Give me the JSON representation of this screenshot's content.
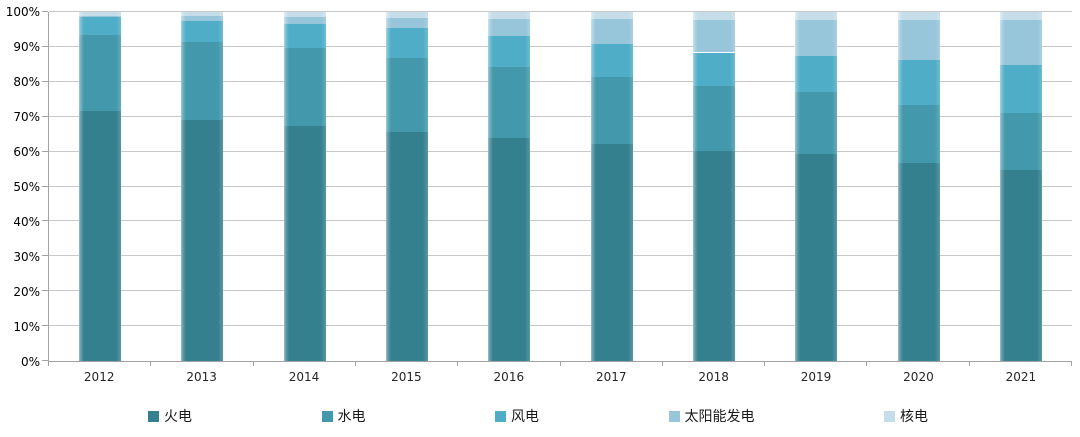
{
  "chart_data": {
    "type": "bar",
    "variant": "stacked-100-percent",
    "title": "",
    "xlabel": "",
    "ylabel": "",
    "categories": [
      "2012",
      "2013",
      "2014",
      "2015",
      "2016",
      "2017",
      "2018",
      "2019",
      "2020",
      "2021"
    ],
    "series": [
      {
        "key": "thermal",
        "name": "火电",
        "color": "#35808F",
        "values": [
          71.5,
          69.1,
          67.4,
          65.7,
          64.0,
          62.3,
          60.2,
          59.3,
          56.6,
          54.6
        ]
      },
      {
        "key": "hydro",
        "name": "水电",
        "color": "#4398AB",
        "values": [
          21.8,
          22.4,
          22.2,
          21.2,
          20.2,
          19.2,
          18.5,
          17.7,
          16.8,
          16.5
        ]
      },
      {
        "key": "wind",
        "name": "风电",
        "color": "#4FADC8",
        "values": [
          5.3,
          6.0,
          7.1,
          8.6,
          9.0,
          9.2,
          9.7,
          10.4,
          12.8,
          13.8
        ]
      },
      {
        "key": "solar",
        "name": "太阳能发电",
        "color": "#97C5D9",
        "values": [
          0.3,
          1.3,
          1.8,
          2.8,
          4.7,
          7.3,
          9.2,
          10.2,
          11.5,
          12.9
        ]
      },
      {
        "key": "nuclear",
        "name": "核电",
        "color": "#C4DDE8",
        "values": [
          1.1,
          1.2,
          1.5,
          1.7,
          2.1,
          2.0,
          2.4,
          2.4,
          2.3,
          2.2
        ]
      }
    ],
    "y_ticks": [
      "0%",
      "10%",
      "20%",
      "30%",
      "40%",
      "50%",
      "60%",
      "70%",
      "80%",
      "90%",
      "100%"
    ],
    "ylim": [
      0,
      100
    ],
    "grid": true,
    "gridline_color": "#c8c8c8",
    "axis_color": "#a3a3a3",
    "legend_position": "bottom"
  }
}
